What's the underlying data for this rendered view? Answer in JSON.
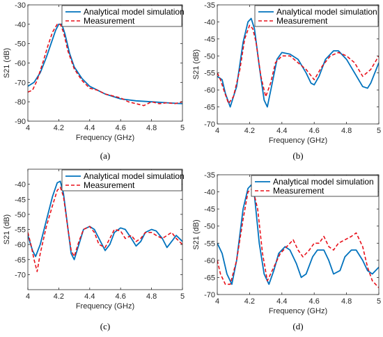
{
  "colors": {
    "model": "#0072BD",
    "measurement": "#E8101A",
    "axis": "#262626"
  },
  "chart_data": [
    {
      "type": "line",
      "panel_label": "(a)",
      "xlabel": "Frequency (GHz)",
      "ylabel": "S21 (dB)",
      "xlim": [
        4,
        5
      ],
      "ylim": [
        -90,
        -30
      ],
      "xticks": [
        "4",
        "4.2",
        "4.4",
        "4.6",
        "4.8",
        "5"
      ],
      "yticks": [
        "-30",
        "-40",
        "-50",
        "-60",
        "-70",
        "-80",
        "-90"
      ],
      "legend": "top-right",
      "series": [
        {
          "name": "Analytical model simulation",
          "style": "solid",
          "x": [
            4.0,
            4.04,
            4.08,
            4.12,
            4.15,
            4.18,
            4.2,
            4.22,
            4.24,
            4.27,
            4.3,
            4.35,
            4.4,
            4.5,
            4.6,
            4.7,
            4.8,
            4.9,
            5.0
          ],
          "y": [
            -72,
            -70,
            -65,
            -57,
            -50,
            -43,
            -40,
            -40,
            -45,
            -55,
            -62,
            -68,
            -72,
            -76,
            -78.5,
            -79.5,
            -80,
            -80.5,
            -81
          ]
        },
        {
          "name": "Measurement",
          "style": "dashed",
          "x": [
            4.0,
            4.03,
            4.06,
            4.1,
            4.13,
            4.16,
            4.19,
            4.21,
            4.23,
            4.26,
            4.3,
            4.35,
            4.4,
            4.45,
            4.5,
            4.55,
            4.6,
            4.65,
            4.7,
            4.75,
            4.8,
            4.85,
            4.9,
            4.95,
            5.0
          ],
          "y": [
            -75,
            -74,
            -69,
            -59,
            -51,
            -44,
            -40,
            -40,
            -44,
            -54,
            -63,
            -69,
            -73,
            -74,
            -76,
            -77,
            -78,
            -80,
            -81,
            -82,
            -80,
            -81,
            -80.5,
            -81,
            -80
          ]
        }
      ]
    },
    {
      "type": "line",
      "panel_label": "(b)",
      "xlabel": "Frequency (GHz)",
      "ylabel": "S21 (dB)",
      "xlim": [
        4,
        5
      ],
      "ylim": [
        -70,
        -35
      ],
      "xticks": [
        "4",
        "4.2",
        "4.4",
        "4.6",
        "4.8",
        "5"
      ],
      "yticks": [
        "-35",
        "-40",
        "-45",
        "-50",
        "-55",
        "-60",
        "-65",
        "-70"
      ],
      "legend": "top-right",
      "series": [
        {
          "name": "Analytical model simulation",
          "style": "solid",
          "x": [
            4.0,
            4.03,
            4.05,
            4.08,
            4.12,
            4.16,
            4.19,
            4.21,
            4.23,
            4.26,
            4.29,
            4.31,
            4.34,
            4.37,
            4.4,
            4.45,
            4.5,
            4.55,
            4.58,
            4.6,
            4.63,
            4.67,
            4.72,
            4.75,
            4.8,
            4.85,
            4.9,
            4.93,
            4.95,
            5.0
          ],
          "y": [
            -56,
            -57,
            -61,
            -65,
            -59,
            -46,
            -40,
            -39,
            -42,
            -53,
            -63,
            -65,
            -58,
            -51,
            -49,
            -49.5,
            -51,
            -55,
            -58,
            -58.5,
            -56,
            -51,
            -48.5,
            -48.5,
            -51,
            -55,
            -59,
            -59.5,
            -58,
            -52
          ]
        },
        {
          "name": "Measurement",
          "style": "dashed",
          "x": [
            4.0,
            4.02,
            4.04,
            4.07,
            4.1,
            4.14,
            4.17,
            4.2,
            4.22,
            4.24,
            4.27,
            4.3,
            4.33,
            4.36,
            4.4,
            4.45,
            4.5,
            4.55,
            4.6,
            4.65,
            4.7,
            4.75,
            4.8,
            4.85,
            4.9,
            4.95,
            5.0
          ],
          "y": [
            -55,
            -57,
            -60,
            -64,
            -62,
            -54,
            -45,
            -41,
            -42,
            -46,
            -56,
            -62,
            -58,
            -52,
            -50,
            -50,
            -52,
            -54,
            -57,
            -53,
            -50,
            -49,
            -50,
            -52,
            -56,
            -54,
            -50
          ]
        }
      ]
    },
    {
      "type": "line",
      "panel_label": "(c)",
      "xlabel": "Frequency (GHz)",
      "ylabel": "S21 (dB)",
      "xlim": [
        4,
        5
      ],
      "ylim": [
        -75,
        -35
      ],
      "xticks": [
        "4",
        "4.2",
        "4.4",
        "4.6",
        "4.8",
        "5"
      ],
      "yticks": [
        "-40",
        "-45",
        "-50",
        "-55",
        "-60",
        "-65",
        "-70"
      ],
      "legend": "top-right",
      "series": [
        {
          "name": "Analytical model simulation",
          "style": "solid",
          "x": [
            4.0,
            4.03,
            4.05,
            4.08,
            4.12,
            4.16,
            4.19,
            4.21,
            4.23,
            4.26,
            4.28,
            4.3,
            4.33,
            4.36,
            4.4,
            4.43,
            4.47,
            4.5,
            4.53,
            4.56,
            4.6,
            4.63,
            4.67,
            4.7,
            4.73,
            4.76,
            4.8,
            4.83,
            4.87,
            4.9,
            4.93,
            4.96,
            5.0
          ],
          "y": [
            -57,
            -62,
            -64,
            -60,
            -52,
            -44,
            -39.5,
            -39,
            -43,
            -55,
            -63,
            -65,
            -60,
            -55,
            -54,
            -55,
            -59,
            -62,
            -60,
            -56,
            -54.5,
            -55,
            -58,
            -60.5,
            -59,
            -56,
            -55,
            -55.5,
            -58,
            -61,
            -59,
            -57,
            -59
          ]
        },
        {
          "name": "Measurement",
          "style": "dashed",
          "x": [
            4.0,
            4.02,
            4.04,
            4.06,
            4.08,
            4.12,
            4.16,
            4.19,
            4.21,
            4.23,
            4.26,
            4.28,
            4.3,
            4.33,
            4.36,
            4.4,
            4.43,
            4.46,
            4.5,
            4.53,
            4.56,
            4.6,
            4.63,
            4.67,
            4.7,
            4.73,
            4.76,
            4.8,
            4.83,
            4.87,
            4.9,
            4.93,
            4.96,
            5.0
          ],
          "y": [
            -56,
            -60,
            -65,
            -69,
            -63,
            -54,
            -47,
            -42,
            -41,
            -44,
            -55,
            -62,
            -64,
            -59,
            -55,
            -54,
            -56,
            -60,
            -61,
            -58,
            -55,
            -55.5,
            -58,
            -57,
            -59,
            -58,
            -56,
            -56,
            -57,
            -58,
            -57,
            -56,
            -58,
            -60
          ]
        }
      ]
    },
    {
      "type": "line",
      "panel_label": "(d)",
      "xlabel": "Frequency (GHz)",
      "ylabel": "S21 (dB)",
      "xlim": [
        4,
        5
      ],
      "ylim": [
        -70,
        -35
      ],
      "xticks": [
        "4",
        "4.2",
        "4.4",
        "4.6",
        "4.8",
        "5"
      ],
      "yticks": [
        "-35",
        "-40",
        "-45",
        "-50",
        "-55",
        "-60",
        "-65",
        "-70"
      ],
      "legend": "top-right",
      "series": [
        {
          "name": "Analytical model simulation",
          "style": "solid",
          "x": [
            4.0,
            4.03,
            4.06,
            4.09,
            4.12,
            4.16,
            4.19,
            4.21,
            4.23,
            4.26,
            4.29,
            4.32,
            4.35,
            4.38,
            4.42,
            4.45,
            4.49,
            4.52,
            4.55,
            4.59,
            4.62,
            4.66,
            4.69,
            4.72,
            4.76,
            4.79,
            4.83,
            4.86,
            4.9,
            4.93,
            4.96,
            5.0
          ],
          "y": [
            -55,
            -58,
            -64,
            -67,
            -60,
            -45,
            -39,
            -38,
            -41,
            -55,
            -64,
            -67,
            -63,
            -58,
            -56,
            -57,
            -61,
            -65,
            -64,
            -59,
            -57,
            -57,
            -60,
            -64,
            -63,
            -59,
            -57,
            -57,
            -60,
            -63,
            -64,
            -62
          ]
        },
        {
          "name": "Measurement",
          "style": "dashed",
          "x": [
            4.0,
            4.02,
            4.05,
            4.08,
            4.12,
            4.16,
            4.19,
            4.22,
            4.25,
            4.28,
            4.31,
            4.35,
            4.39,
            4.43,
            4.47,
            4.5,
            4.53,
            4.57,
            4.6,
            4.63,
            4.66,
            4.69,
            4.72,
            4.75,
            4.79,
            4.83,
            4.86,
            4.9,
            4.93,
            4.96,
            5.0
          ],
          "y": [
            -60,
            -64,
            -67,
            -67,
            -60,
            -48,
            -40,
            -39,
            -45,
            -58,
            -66,
            -62,
            -58,
            -56,
            -54,
            -57,
            -59,
            -57,
            -55,
            -55,
            -53,
            -56,
            -57,
            -55,
            -54,
            -53,
            -52,
            -56,
            -62,
            -66,
            -68
          ]
        }
      ]
    }
  ]
}
